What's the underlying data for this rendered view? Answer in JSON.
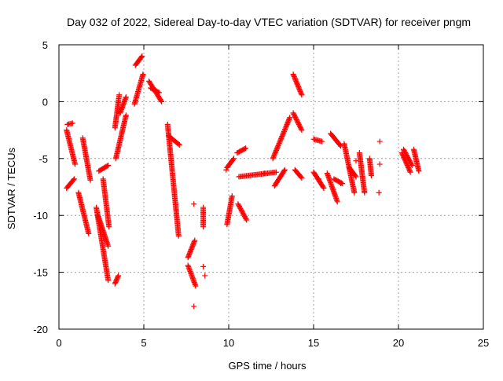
{
  "chart_data": {
    "type": "scatter",
    "title": "Day 032 of 2022, Sidereal Day-to-day VTEC variation (SDTVAR) for receiver pngm",
    "xlabel": "GPS time / hours",
    "ylabel": "SDTVAR / TECUs",
    "xlim": [
      0,
      25
    ],
    "ylim": [
      -20,
      5
    ],
    "xticks": [
      0,
      5,
      10,
      15,
      20,
      25
    ],
    "yticks": [
      5,
      0,
      -5,
      -10,
      -15,
      -20
    ],
    "xtick_labels": [
      "0",
      "5",
      "10",
      "15",
      "20",
      "25"
    ],
    "ytick_labels": [
      "5",
      "0",
      "-5",
      "-10",
      "-15",
      "-20"
    ],
    "grid": true,
    "marker": "+",
    "color": "#ff0000",
    "series": [
      {
        "name": "SDTVAR",
        "segments": [
          {
            "x0": 0.45,
            "x1": 0.95,
            "y0": -2.5,
            "y1": -5.5
          },
          {
            "x0": 0.45,
            "x1": 0.9,
            "y0": -7.6,
            "y1": -6.8
          },
          {
            "x0": 0.5,
            "x1": 0.8,
            "y0": -2.0,
            "y1": -1.9
          },
          {
            "x0": 1.15,
            "x1": 1.75,
            "y0": -8.0,
            "y1": -11.6
          },
          {
            "x0": 1.4,
            "x1": 1.85,
            "y0": -3.2,
            "y1": -6.9
          },
          {
            "x0": 2.2,
            "x1": 2.9,
            "y0": -9.3,
            "y1": -15.7
          },
          {
            "x0": 2.3,
            "x1": 2.9,
            "y0": -10.0,
            "y1": -12.7
          },
          {
            "x0": 2.35,
            "x1": 2.9,
            "y0": -6.1,
            "y1": -5.6
          },
          {
            "x0": 2.6,
            "x1": 2.95,
            "y0": -6.8,
            "y1": -11.0
          },
          {
            "x0": 3.3,
            "x1": 3.5,
            "y0": -16.0,
            "y1": -15.3
          },
          {
            "x0": 3.3,
            "x1": 3.55,
            "y0": -2.3,
            "y1": 0.6
          },
          {
            "x0": 3.35,
            "x1": 3.95,
            "y0": -5.0,
            "y1": -1.2
          },
          {
            "x0": 3.6,
            "x1": 3.95,
            "y0": -1.0,
            "y1": 0.4
          },
          {
            "x0": 4.45,
            "x1": 4.95,
            "y0": -0.2,
            "y1": 2.4
          },
          {
            "x0": 4.5,
            "x1": 4.9,
            "y0": 3.2,
            "y1": 4.0
          },
          {
            "x0": 5.3,
            "x1": 6.05,
            "y0": 1.8,
            "y1": 0.0
          },
          {
            "x0": 5.4,
            "x1": 5.9,
            "y0": 1.2,
            "y1": 0.8
          },
          {
            "x0": 6.4,
            "x1": 7.05,
            "y0": -2.0,
            "y1": -11.8
          },
          {
            "x0": 6.45,
            "x1": 7.1,
            "y0": -3.0,
            "y1": -3.8
          },
          {
            "x0": 7.6,
            "x1": 8.0,
            "y0": -13.7,
            "y1": -12.2
          },
          {
            "x0": 7.6,
            "x1": 8.05,
            "y0": -14.4,
            "y1": -16.2
          },
          {
            "x0": 8.5,
            "x1": 8.5,
            "y0": -9.3,
            "y1": -11.0
          },
          {
            "x0": 9.9,
            "x1": 10.3,
            "y0": -5.8,
            "y1": -5.0
          },
          {
            "x0": 9.9,
            "x1": 10.2,
            "y0": -10.8,
            "y1": -8.3
          },
          {
            "x0": 10.5,
            "x1": 11.0,
            "y0": -4.5,
            "y1": -4.1
          },
          {
            "x0": 10.55,
            "x1": 11.05,
            "y0": -9.0,
            "y1": -10.4
          },
          {
            "x0": 10.6,
            "x1": 12.8,
            "y0": -6.6,
            "y1": -6.2
          },
          {
            "x0": 12.6,
            "x1": 13.6,
            "y0": -5.0,
            "y1": -1.4
          },
          {
            "x0": 12.7,
            "x1": 13.3,
            "y0": -7.4,
            "y1": -6.0
          },
          {
            "x0": 13.8,
            "x1": 14.3,
            "y0": 2.4,
            "y1": 0.6
          },
          {
            "x0": 13.8,
            "x1": 14.3,
            "y0": -1.0,
            "y1": -2.5
          },
          {
            "x0": 13.9,
            "x1": 14.3,
            "y0": -6.0,
            "y1": -6.7
          },
          {
            "x0": 15.0,
            "x1": 15.5,
            "y0": -3.3,
            "y1": -3.5
          },
          {
            "x0": 15.0,
            "x1": 15.6,
            "y0": -6.2,
            "y1": -7.6
          },
          {
            "x0": 15.8,
            "x1": 16.4,
            "y0": -6.3,
            "y1": -8.8
          },
          {
            "x0": 16.0,
            "x1": 16.6,
            "y0": -2.8,
            "y1": -3.9
          },
          {
            "x0": 16.2,
            "x1": 16.7,
            "y0": -6.8,
            "y1": -7.2
          },
          {
            "x0": 16.8,
            "x1": 17.4,
            "y0": -3.7,
            "y1": -8.0
          },
          {
            "x0": 17.1,
            "x1": 17.5,
            "y0": -5.8,
            "y1": -6.6
          },
          {
            "x0": 17.7,
            "x1": 18.0,
            "y0": -4.5,
            "y1": -8.0
          },
          {
            "x0": 18.3,
            "x1": 18.4,
            "y0": -5.0,
            "y1": -6.5
          },
          {
            "x0": 20.2,
            "x1": 20.7,
            "y0": -4.5,
            "y1": -6.2
          },
          {
            "x0": 20.3,
            "x1": 20.8,
            "y0": -4.2,
            "y1": -5.6
          },
          {
            "x0": 20.9,
            "x1": 21.2,
            "y0": -4.2,
            "y1": -6.1
          }
        ],
        "isolated_points": [
          [
            7.95,
            -9.0
          ],
          [
            7.95,
            -18.0
          ],
          [
            8.5,
            -14.5
          ],
          [
            8.6,
            -15.3
          ],
          [
            17.5,
            -5.2
          ],
          [
            18.9,
            -3.5
          ],
          [
            18.9,
            -5.5
          ],
          [
            18.85,
            -8.0
          ],
          [
            16.6,
            -7.2
          ],
          [
            15.3,
            -6.8
          ],
          [
            12.1,
            -6.3
          ],
          [
            9.85,
            -6.0
          ]
        ]
      }
    ]
  }
}
